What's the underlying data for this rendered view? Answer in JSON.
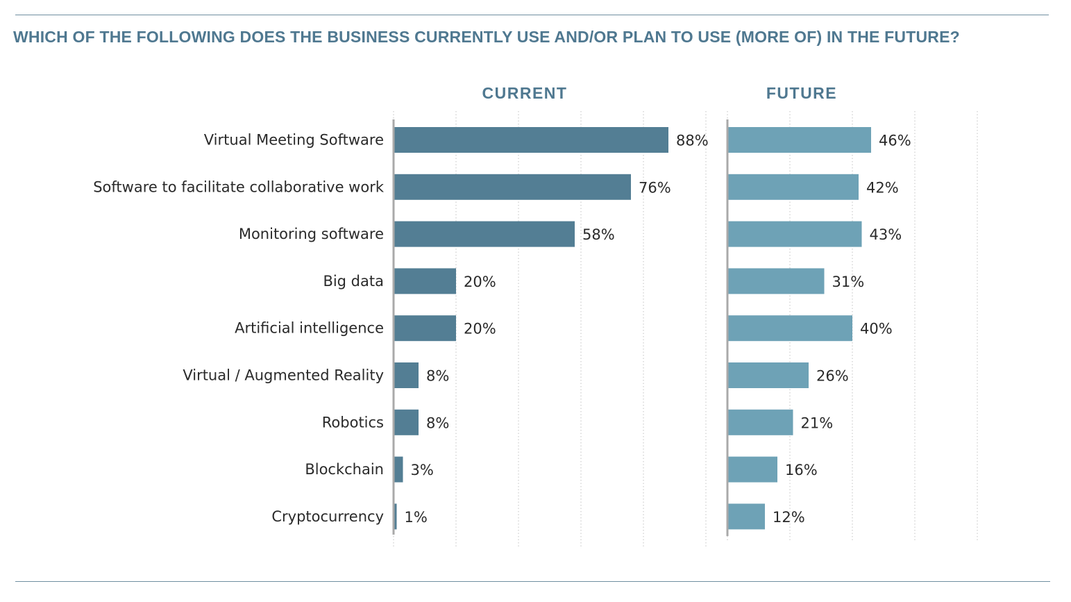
{
  "title": "WHICH OF THE FOLLOWING DOES THE BUSINESS CURRENTLY USE AND/OR PLAN TO USE (MORE OF) IN THE FUTURE?",
  "colors": {
    "title": "#4f7890",
    "current_bar": "#537e94",
    "future_bar": "#6ea2b6",
    "axis": "#a9a9a9",
    "grid": "#cccccc",
    "rule": "#6f8fa0"
  },
  "chart_data": {
    "type": "bar",
    "orientation": "horizontal",
    "title": "WHICH OF THE FOLLOWING DOES THE BUSINESS CURRENTLY USE AND/OR PLAN TO USE (MORE OF) IN THE FUTURE?",
    "categories": [
      "Virtual Meeting Software",
      "Software to facilitate collaborative work",
      "Monitoring software",
      "Big data",
      "Artificial intelligence",
      "Virtual / Augmented Reality",
      "Robotics",
      "Blockchain",
      "Cryptocurrency"
    ],
    "series": [
      {
        "name": "CURRENT",
        "values": [
          88,
          76,
          58,
          20,
          20,
          8,
          8,
          3,
          1
        ],
        "labels": [
          "88%",
          "76%",
          "58%",
          "20%",
          "20%",
          "8%",
          "8%",
          "3%",
          "1%"
        ],
        "xlim": [
          0,
          100
        ]
      },
      {
        "name": "FUTURE",
        "values": [
          46,
          42,
          43,
          31,
          40,
          26,
          21,
          16,
          12
        ],
        "labels": [
          "46%",
          "42%",
          "43%",
          "31%",
          "40%",
          "26%",
          "21%",
          "16%",
          "12%"
        ],
        "xlim": [
          0,
          90
        ]
      }
    ],
    "grid": true,
    "gridline_step": 20,
    "legend": "none"
  }
}
